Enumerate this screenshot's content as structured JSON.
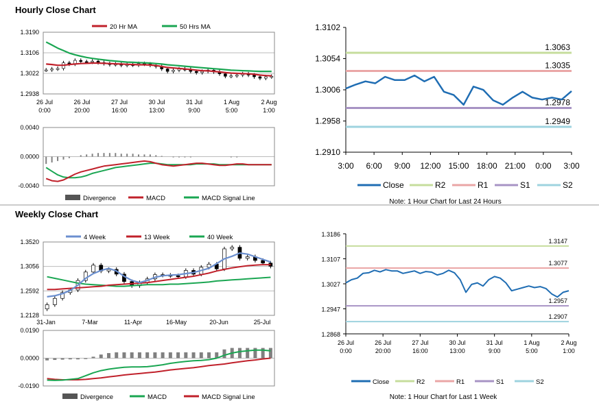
{
  "sections": {
    "hourly_title": "Hourly Close Chart",
    "weekly_title": "Weekly Close Chart"
  },
  "colors": {
    "ma20": "#c0202a",
    "ma50": "#1aa652",
    "close": "#1f6db3",
    "r2": "#c6dd9c",
    "r1": "#eaa6a6",
    "s1": "#a793c4",
    "s2": "#9ed3df",
    "macd_bar": "#808080",
    "week4": "#6b8fcf"
  },
  "chart_data": [
    {
      "id": "hourly_candles",
      "type": "candlestick",
      "legend": [
        "20 Hr MA",
        "50 Hrs MA"
      ],
      "yticks": [
        "1.3190",
        "1.3106",
        "1.3022",
        "1.2938"
      ],
      "ylim": [
        1.2938,
        1.319
      ],
      "xticks": [
        [
          "26 Jul",
          "0:00"
        ],
        [
          "26 Jul",
          "20:00"
        ],
        [
          "27 Jul",
          "16:00"
        ],
        [
          "30 Jul",
          "13:00"
        ],
        [
          "31 Jul",
          "9:00"
        ],
        [
          "1 Aug",
          "5:00"
        ],
        [
          "2 Aug",
          "1:00"
        ]
      ],
      "close": [
        1.3036,
        1.304,
        1.3042,
        1.3065,
        1.306,
        1.3075,
        1.307,
        1.3068,
        1.3072,
        1.3066,
        1.3062,
        1.3058,
        1.306,
        1.3055,
        1.3058,
        1.3056,
        1.3062,
        1.306,
        1.3055,
        1.305,
        1.304,
        1.303,
        1.3035,
        1.304,
        1.3038,
        1.303,
        1.3025,
        1.303,
        1.3035,
        1.3028,
        1.302,
        1.301,
        1.3012,
        1.3015,
        1.302,
        1.3015,
        1.3008,
        1.3002,
        1.3008,
        1.301
      ],
      "ma20": [
        1.306,
        1.3058,
        1.3055,
        1.3055,
        1.3058,
        1.306,
        1.3062,
        1.3063,
        1.3064,
        1.3064,
        1.3063,
        1.3062,
        1.3061,
        1.306,
        1.3059,
        1.3058,
        1.3057,
        1.3057,
        1.3056,
        1.3054,
        1.305,
        1.3046,
        1.3044,
        1.3042,
        1.304,
        1.3038,
        1.3035,
        1.3033,
        1.3032,
        1.303,
        1.3028,
        1.3025,
        1.3023,
        1.3022,
        1.3021,
        1.302,
        1.3018,
        1.3015,
        1.3013,
        1.3012
      ],
      "ma50": [
        1.315,
        1.3138,
        1.3125,
        1.3115,
        1.3105,
        1.3098,
        1.3092,
        1.3087,
        1.3083,
        1.308,
        1.3077,
        1.3074,
        1.3072,
        1.307,
        1.3068,
        1.3067,
        1.3066,
        1.3065,
        1.3064,
        1.3062,
        1.306,
        1.3057,
        1.3055,
        1.3053,
        1.3051,
        1.3049,
        1.3047,
        1.3045,
        1.3043,
        1.3041,
        1.3039,
        1.3037,
        1.3035,
        1.3034,
        1.3033,
        1.3032,
        1.3031,
        1.303,
        1.303,
        1.303
      ]
    },
    {
      "id": "hourly_macd",
      "type": "macd",
      "legend": [
        "Divergence",
        "MACD",
        "MACD Signal Line"
      ],
      "yticks": [
        "0.0040",
        "0.0000",
        "-0.0040"
      ],
      "ylim": [
        -0.004,
        0.004
      ],
      "divergence": [
        -0.001,
        -0.0008,
        -0.0006,
        -0.0004,
        -0.0002,
        0.0,
        0.0002,
        0.0003,
        0.0004,
        0.0005,
        0.0005,
        0.0005,
        0.0005,
        0.0004,
        0.0004,
        0.0004,
        0.0003,
        0.0003,
        0.0003,
        0.0002,
        0.0001,
        0.0,
        -0.0001,
        -0.0001,
        -0.0001,
        -0.0001,
        0.0,
        0.0,
        0.0,
        0.0,
        0.0,
        0.0,
        -0.0001,
        -0.0001,
        0.0,
        0.0,
        0.0,
        0.0,
        0.0,
        0.0
      ],
      "macd": [
        -0.003,
        -0.0033,
        -0.0034,
        -0.0032,
        -0.0028,
        -0.0024,
        -0.0021,
        -0.0019,
        -0.0017,
        -0.0015,
        -0.0013,
        -0.0012,
        -0.0011,
        -0.001,
        -0.0009,
        -0.0008,
        -0.0007,
        -0.0006,
        -0.0007,
        -0.0009,
        -0.0011,
        -0.0012,
        -0.0013,
        -0.0012,
        -0.0011,
        -0.001,
        -0.0009,
        -0.0009,
        -0.001,
        -0.0011,
        -0.0012,
        -0.0012,
        -0.0011,
        -0.001,
        -0.001,
        -0.0011,
        -0.0011,
        -0.0011,
        -0.0011,
        -0.0011
      ],
      "signal": [
        -0.0015,
        -0.002,
        -0.0025,
        -0.0028,
        -0.0029,
        -0.0029,
        -0.0028,
        -0.0026,
        -0.0023,
        -0.0021,
        -0.0019,
        -0.0017,
        -0.0015,
        -0.0014,
        -0.0013,
        -0.0012,
        -0.0011,
        -0.001,
        -0.0009,
        -0.0009,
        -0.001,
        -0.0011,
        -0.0011,
        -0.0011,
        -0.0011,
        -0.0011,
        -0.001,
        -0.001,
        -0.001,
        -0.001,
        -0.0011,
        -0.0011,
        -0.0011,
        -0.0011,
        -0.0011,
        -0.0011,
        -0.0011,
        -0.0011,
        -0.0011,
        -0.0011
      ]
    },
    {
      "id": "hourly_24h",
      "type": "line",
      "yticks": [
        "1.3102",
        "1.3054",
        "1.3006",
        "1.2958",
        "1.2910"
      ],
      "ylim": [
        1.291,
        1.3102
      ],
      "xticks": [
        "3:00",
        "6:00",
        "9:00",
        "12:00",
        "15:00",
        "18:00",
        "21:00",
        "0:00",
        "3:00"
      ],
      "close": [
        1.3008,
        1.3014,
        1.3019,
        1.3016,
        1.3026,
        1.3021,
        1.3021,
        1.3028,
        1.3019,
        1.3026,
        1.3003,
        1.2998,
        1.2983,
        1.3011,
        1.3006,
        1.299,
        1.2983,
        1.2994,
        1.3003,
        1.2994,
        1.2991,
        1.2994,
        1.2991,
        1.3004
      ],
      "levels": [
        {
          "name": "R2",
          "value": 1.3063,
          "label": "1.3063"
        },
        {
          "name": "R1",
          "value": 1.3035,
          "label": "1.3035"
        },
        {
          "name": "S1",
          "value": 1.2978,
          "label": "1.2978"
        },
        {
          "name": "S2",
          "value": 1.2949,
          "label": "1.2949"
        }
      ],
      "legend": [
        "Close",
        "R2",
        "R1",
        "S1",
        "S2"
      ],
      "note": "Note: 1 Hour Chart for Last 24 Hours"
    },
    {
      "id": "weekly_candles",
      "type": "candlestick",
      "legend": [
        "4 Week",
        "13 Week",
        "40 Week"
      ],
      "yticks": [
        "1.3520",
        "1.3056",
        "1.2592",
        "1.2128"
      ],
      "ylim": [
        1.2128,
        1.352
      ],
      "xticks": [
        "31-Jan",
        "7-Mar",
        "11-Apr",
        "16-May",
        "20-Jun",
        "25-Jul"
      ],
      "close": [
        1.233,
        1.245,
        1.256,
        1.261,
        1.279,
        1.295,
        1.308,
        1.297,
        1.3,
        1.291,
        1.277,
        1.269,
        1.275,
        1.282,
        1.29,
        1.289,
        1.288,
        1.286,
        1.298,
        1.291,
        1.304,
        1.31,
        1.301,
        1.339,
        1.342,
        1.321,
        1.324,
        1.317,
        1.312,
        1.306
      ],
      "opens": [
        1.225,
        1.233,
        1.245,
        1.256,
        1.261,
        1.279,
        1.295,
        1.308,
        1.297,
        1.3,
        1.291,
        1.277,
        1.269,
        1.275,
        1.282,
        1.29,
        1.289,
        1.288,
        1.286,
        1.298,
        1.291,
        1.304,
        1.31,
        1.301,
        1.339,
        1.342,
        1.321,
        1.324,
        1.317,
        1.312
      ],
      "week4": [
        1.248,
        1.25,
        1.254,
        1.26,
        1.27,
        1.283,
        1.292,
        1.298,
        1.302,
        1.297,
        1.287,
        1.279,
        1.275,
        1.279,
        1.285,
        1.288,
        1.289,
        1.29,
        1.292,
        1.294,
        1.298,
        1.302,
        1.311,
        1.32,
        1.325,
        1.331,
        1.329,
        1.324,
        1.319,
        1.314
      ],
      "week13": [
        1.262,
        1.262,
        1.263,
        1.264,
        1.265,
        1.266,
        1.267,
        1.268,
        1.27,
        1.271,
        1.272,
        1.273,
        1.274,
        1.275,
        1.277,
        1.279,
        1.281,
        1.283,
        1.285,
        1.287,
        1.29,
        1.293,
        1.297,
        1.3,
        1.303,
        1.305,
        1.307,
        1.308,
        1.309,
        1.309
      ],
      "week40": [
        1.286,
        1.283,
        1.28,
        1.277,
        1.274,
        1.272,
        1.271,
        1.27,
        1.269,
        1.268,
        1.268,
        1.269,
        1.27,
        1.271,
        1.271,
        1.271,
        1.272,
        1.272,
        1.273,
        1.274,
        1.275,
        1.276,
        1.278,
        1.279,
        1.28,
        1.281,
        1.282,
        1.283,
        1.284,
        1.285
      ]
    },
    {
      "id": "weekly_macd",
      "type": "macd",
      "legend": [
        "Divergence",
        "MACD",
        "MACD Signal Line"
      ],
      "yticks": [
        "0.0190",
        "0.0000",
        "-0.0190"
      ],
      "ylim": [
        -0.019,
        0.019
      ],
      "divergence": [
        -0.0015,
        -0.0012,
        -0.001,
        -0.0008,
        -0.0008,
        -0.0006,
        0.001,
        0.0025,
        0.0035,
        0.004,
        0.004,
        0.004,
        0.004,
        0.004,
        0.004,
        0.004,
        0.004,
        0.004,
        0.004,
        0.004,
        0.004,
        0.004,
        0.004,
        0.006,
        0.007,
        0.007,
        0.007,
        0.007,
        0.007,
        0.007
      ],
      "macd": [
        -0.015,
        -0.0152,
        -0.015,
        -0.0145,
        -0.014,
        -0.012,
        -0.01,
        -0.0085,
        -0.0075,
        -0.0068,
        -0.0062,
        -0.006,
        -0.006,
        -0.0058,
        -0.0052,
        -0.0045,
        -0.0035,
        -0.0028,
        -0.0022,
        -0.0018,
        -0.0015,
        -0.001,
        0.0,
        0.002,
        0.0035,
        0.0045,
        0.005,
        0.0055,
        0.0055,
        0.005
      ],
      "signal": [
        -0.014,
        -0.0145,
        -0.0148,
        -0.0148,
        -0.0148,
        -0.0145,
        -0.014,
        -0.0135,
        -0.0128,
        -0.0122,
        -0.0115,
        -0.011,
        -0.0105,
        -0.01,
        -0.0095,
        -0.0088,
        -0.008,
        -0.0075,
        -0.007,
        -0.0065,
        -0.0058,
        -0.005,
        -0.0045,
        -0.004,
        -0.0032,
        -0.0025,
        -0.0018,
        -0.0012,
        -0.0005,
        0.0
      ]
    },
    {
      "id": "weekly_hourly",
      "type": "line",
      "yticks": [
        "1.3186",
        "1.3107",
        "1.3027",
        "1.2947",
        "1.2868"
      ],
      "ylim": [
        1.2868,
        1.3186
      ],
      "xticks": [
        [
          "26 Jul",
          "0:00"
        ],
        [
          "26 Jul",
          "20:00"
        ],
        [
          "27 Jul",
          "16:00"
        ],
        [
          "30 Jul",
          "13:00"
        ],
        [
          "31 Jul",
          "9:00"
        ],
        [
          "1 Aug",
          "5:00"
        ],
        [
          "2 Aug",
          "1:00"
        ]
      ],
      "close": [
        1.303,
        1.304,
        1.3045,
        1.306,
        1.3062,
        1.307,
        1.3065,
        1.3072,
        1.3068,
        1.3068,
        1.306,
        1.3064,
        1.3068,
        1.306,
        1.3066,
        1.3064,
        1.3055,
        1.306,
        1.307,
        1.3062,
        1.304,
        1.3,
        1.3025,
        1.303,
        1.302,
        1.304,
        1.305,
        1.3045,
        1.303,
        1.3005,
        1.301,
        1.3015,
        1.302,
        1.3015,
        1.3018,
        1.3012,
        1.2995,
        1.2985,
        1.3,
        1.3005
      ],
      "levels": [
        {
          "name": "R2",
          "value": 1.3147,
          "label": "1.3147"
        },
        {
          "name": "R1",
          "value": 1.3077,
          "label": "1.3077"
        },
        {
          "name": "S1",
          "value": 1.2957,
          "label": "1.2957"
        },
        {
          "name": "S2",
          "value": 1.2907,
          "label": "1.2907"
        }
      ],
      "legend": [
        "Close",
        "R2",
        "R1",
        "S1",
        "S2"
      ],
      "note": "Note: 1 Hour Chart for Last 1 Week"
    }
  ]
}
